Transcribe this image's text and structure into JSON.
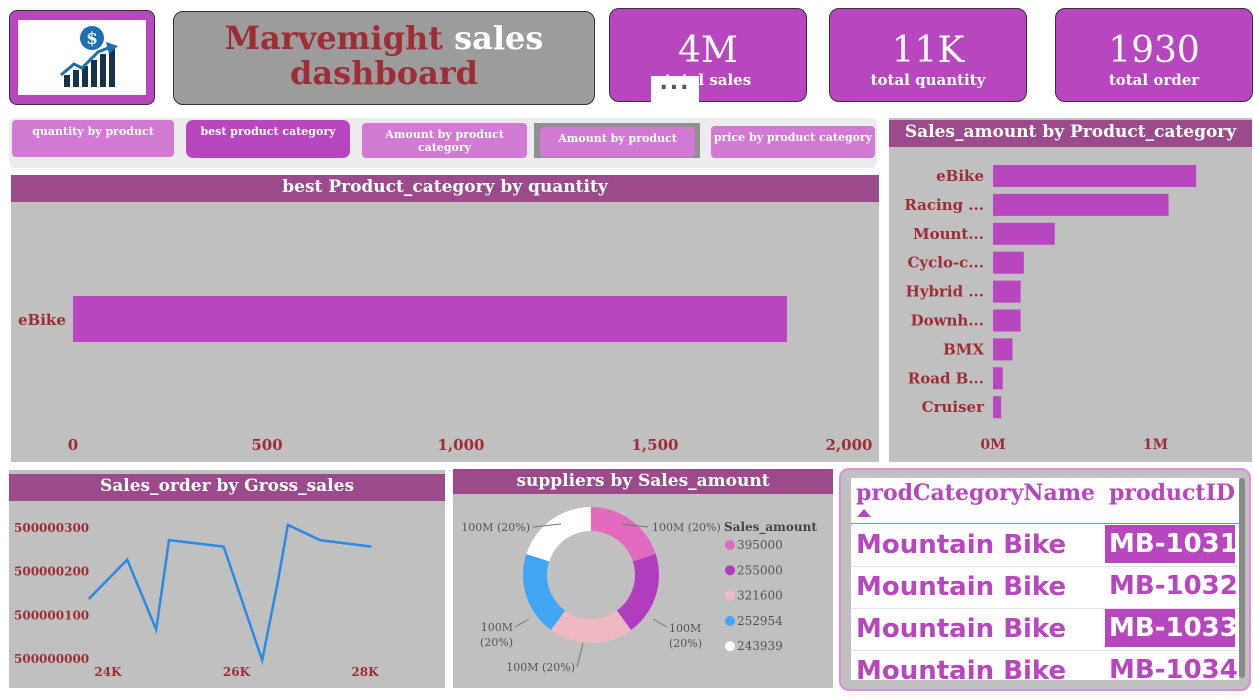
{
  "header": {
    "title_part1": "Marvemight",
    "title_part2": "sales",
    "title_line2": "dashboard"
  },
  "kpis": [
    {
      "value": "4M",
      "label": "total sales"
    },
    {
      "value": "11K",
      "label": "total quantity"
    },
    {
      "value": "1930",
      "label": "total order"
    }
  ],
  "more_button": "...",
  "nav": [
    {
      "label": "quantity by product"
    },
    {
      "label": "best product category"
    },
    {
      "label": "Amount by product category"
    },
    {
      "label": "Amount by product"
    },
    {
      "label": "price by product category"
    }
  ],
  "colors": {
    "accent": "#b846bf",
    "header": "#9b4b8c",
    "panel": "#c0c0c0",
    "title_red": "#9e2d35"
  },
  "icons": {
    "logo": "dollar-growth-chart-icon"
  },
  "chart_data": [
    {
      "type": "bar",
      "orientation": "horizontal",
      "title": "best Product_category by quantity",
      "categories": [
        "eBike"
      ],
      "values": [
        1840
      ],
      "xlim": [
        0,
        2000
      ],
      "xticks": [
        "0",
        "500",
        "1,000",
        "1,500",
        "2,000"
      ]
    },
    {
      "type": "bar",
      "orientation": "horizontal",
      "title": "Sales_amount by Product_category",
      "categories": [
        "eBike",
        "Racing ...",
        "Mount...",
        "Cyclo-c...",
        "Hybrid ...",
        "Downh...",
        "BMX",
        "Road B...",
        "Cruiser"
      ],
      "values": [
        1.25,
        1.08,
        0.38,
        0.19,
        0.17,
        0.17,
        0.12,
        0.06,
        0.05
      ],
      "unit": "M",
      "xlim": [
        0,
        1.6
      ],
      "xticks": [
        "0M",
        "1M"
      ]
    },
    {
      "type": "line",
      "title": "Sales_order by Gross_sales",
      "x": [
        23700,
        24300,
        24750,
        24950,
        25800,
        26400,
        26650,
        26800,
        27300,
        28100
      ],
      "y": [
        500000135,
        500000225,
        500000065,
        500000270,
        500000255,
        499999995,
        500000180,
        500000305,
        500000270,
        500000255
      ],
      "xticks": [
        "24K",
        "26K",
        "28K"
      ],
      "yticks": [
        "500000000",
        "500000100",
        "500000200",
        "500000300"
      ]
    },
    {
      "type": "pie",
      "donut": true,
      "title": "suppliers by Sales_amount",
      "legend_title": "Sales_amount",
      "labels": [
        "395000",
        "255000",
        "321600",
        "252954",
        "243939"
      ],
      "values": [
        20,
        20,
        20,
        20,
        20
      ],
      "slice_labels": [
        "100M (20%)",
        "100M (20%)",
        "100M (20%)",
        "100M (20%)",
        "100M (20%)"
      ],
      "colors": [
        "#e26bbf",
        "#b13cc0",
        "#efb9c3",
        "#43a6f5",
        "#ffffff"
      ],
      "legend_position": "right"
    }
  ],
  "table": {
    "columns": [
      "prodCategoryName",
      "productID"
    ],
    "rows": [
      {
        "name": "Mountain Bike",
        "id": "MB-1031"
      },
      {
        "name": "Mountain Bike",
        "id": "MB-1032"
      },
      {
        "name": "Mountain Bike",
        "id": "MB-1033"
      },
      {
        "name": "Mountain Bike",
        "id": "MB-1034"
      }
    ]
  }
}
